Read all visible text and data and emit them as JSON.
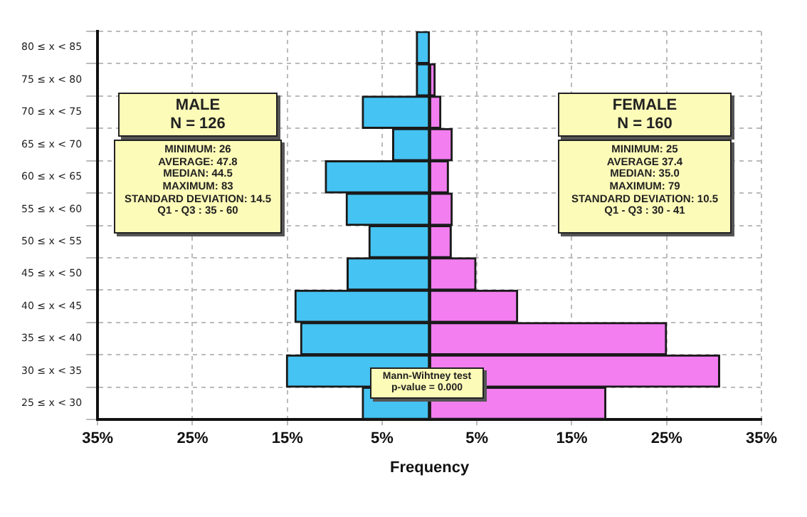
{
  "chart_data": {
    "type": "bar",
    "orientation": "horizontal",
    "stacked": true,
    "xlabel": "Frequency",
    "categories": [
      "80 ≤ x < 85",
      "75 ≤ x < 80",
      "70 ≤ x < 75",
      "65 ≤ x < 70",
      "60 ≤ x < 65",
      "55 ≤ x < 60",
      "50 ≤ x < 55",
      "45 ≤ x < 50",
      "40 ≤ x < 45",
      "35 ≤ x < 40",
      "30 ≤ x < 35",
      "25 ≤ x < 30"
    ],
    "series": [
      {
        "color": "#45c3f2",
        "values": [
          -1.4,
          -1.4,
          -7.1,
          -3.9,
          -11.0,
          -8.8,
          -6.4,
          -8.7,
          -14.2,
          -13.6,
          -15.1,
          -7.1
        ]
      },
      {
        "color": "#f27ef0",
        "values": [
          0,
          0.6,
          1.2,
          2.4,
          2.0,
          2.4,
          2.3,
          4.9,
          9.3,
          25.0,
          30.6,
          18.6
        ]
      }
    ],
    "xlim": [
      -35,
      35
    ],
    "xticks": [
      {
        "value": -35,
        "label": "35%"
      },
      {
        "value": -25,
        "label": "25%"
      },
      {
        "value": -15,
        "label": "15%"
      },
      {
        "value": -5,
        "label": "5%"
      },
      {
        "value": 5,
        "label": "5%"
      },
      {
        "value": 15,
        "label": "15%"
      },
      {
        "value": 25,
        "label": "25%"
      },
      {
        "value": 35,
        "label": "35%"
      }
    ],
    "grid": true,
    "legend": false,
    "annotations": [
      "MALE\nN = 126",
      "MINIMUM: 26\nAVERAGE: 47.8\nMEDIAN: 44.5\nMAXIMUM: 83\nSTANDARD DEVIATION: 14.5\nQ1 - Q3 : 35 - 60",
      "FEMALE\nN = 160",
      "MINIMUM: 25\nAVERAGE 37.4\nMEDIAN: 35.0\nMAXIMUM: 79\nSTANDARD DEVIATION: 10.5\nQ1 - Q3 : 30 - 41",
      "Mann-Wihtney test\np-value = 0.000"
    ]
  }
}
